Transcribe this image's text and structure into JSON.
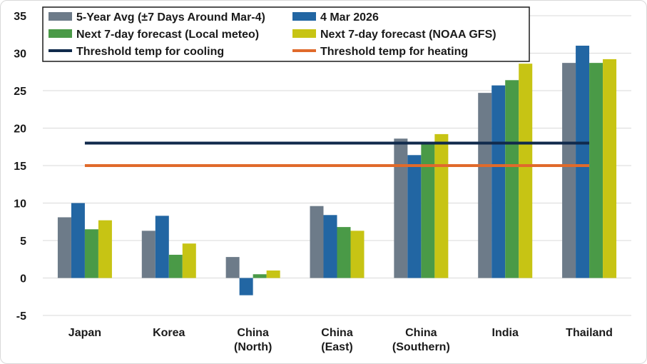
{
  "chart_data": {
    "type": "bar",
    "title": "",
    "xlabel": "",
    "ylabel": "",
    "ylim": [
      -5,
      35
    ],
    "yticks": [
      35,
      30,
      25,
      20,
      15,
      10,
      5,
      0,
      -5
    ],
    "ytick_labels": [
      "35",
      "30",
      "25",
      "20",
      "15",
      "10",
      "5",
      "0",
      "-5"
    ],
    "grid": true,
    "categories": [
      [
        "Japan"
      ],
      [
        "Korea"
      ],
      [
        "China",
        "(North)"
      ],
      [
        "China",
        "(East)"
      ],
      [
        "China",
        "(Southern)"
      ],
      [
        "India"
      ],
      [
        "Thailand"
      ]
    ],
    "series": [
      {
        "name": "5-Year Avg (±7 Days Around Mar-4)",
        "color": "#6d7b89",
        "values": [
          8.1,
          6.3,
          2.8,
          9.6,
          18.6,
          24.7,
          28.7
        ]
      },
      {
        "name": "4 Mar 2026",
        "color": "#2266a3",
        "values": [
          10.0,
          8.3,
          -2.3,
          8.4,
          16.4,
          25.7,
          31.0
        ]
      },
      {
        "name": "Next 7-day forecast (Local meteo)",
        "color": "#4a9a47",
        "values": [
          6.5,
          3.1,
          0.5,
          6.8,
          17.9,
          26.4,
          28.7
        ]
      },
      {
        "name": "Next 7-day forecast (NOAA GFS)",
        "color": "#c7c414",
        "values": [
          7.7,
          4.6,
          1.0,
          6.3,
          19.2,
          28.6,
          29.2
        ]
      }
    ],
    "lines": [
      {
        "name": "Threshold temp for cooling",
        "color": "#102a4c",
        "value": 18
      },
      {
        "name": "Threshold temp for heating",
        "color": "#e06a2b",
        "value": 15
      }
    ],
    "legend_position": "top"
  }
}
